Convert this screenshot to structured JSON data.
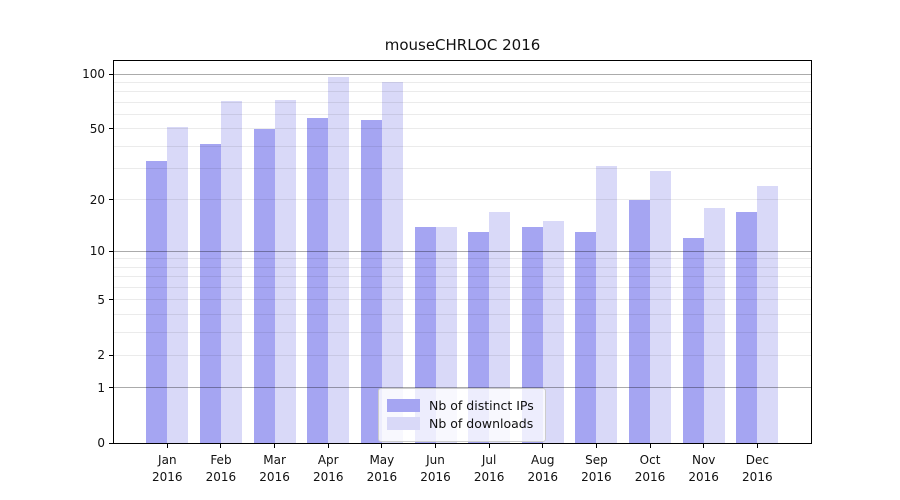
{
  "title": "mouseCHRLOC 2016",
  "chart_data": {
    "type": "bar",
    "title": "mouseCHRLOC 2016",
    "categories": [
      "Jan",
      "Feb",
      "Mar",
      "Apr",
      "May",
      "Jun",
      "Jul",
      "Aug",
      "Sep",
      "Oct",
      "Nov",
      "Dec"
    ],
    "category_year": "2016",
    "series": [
      {
        "name": "Nb of distinct IPs",
        "color": "#a5a5f2",
        "values": [
          33,
          41,
          50,
          57,
          56,
          14,
          13,
          14,
          13,
          20,
          12,
          17
        ]
      },
      {
        "name": "Nb of downloads",
        "color": "#d9d9f8",
        "values": [
          51,
          71,
          72,
          96,
          90,
          14,
          17,
          15,
          31,
          29,
          18,
          24
        ]
      }
    ],
    "xlabel": "",
    "ylabel": "",
    "y_scale": "log1p",
    "ylim": [
      0,
      118
    ],
    "y_ticks": [
      0,
      1,
      2,
      5,
      10,
      20,
      50,
      100
    ],
    "y_grid_major": [
      1,
      10,
      100
    ],
    "y_grid_minor": [
      2,
      3,
      4,
      5,
      6,
      7,
      8,
      9,
      20,
      30,
      40,
      50,
      60,
      70,
      80,
      90
    ],
    "grid": true,
    "legend_position": "lower center"
  }
}
